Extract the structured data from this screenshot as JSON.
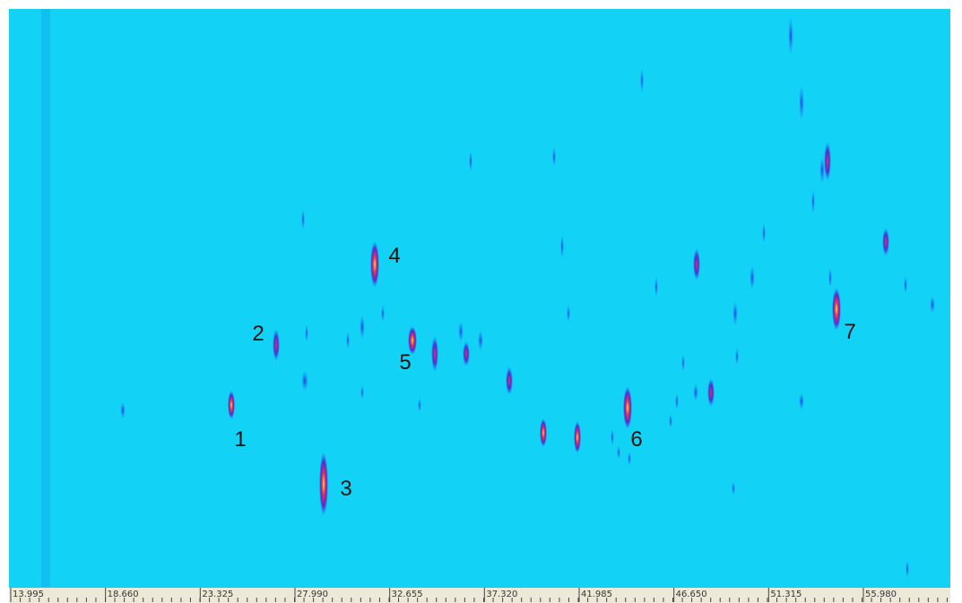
{
  "axis": {
    "ticks": [
      13.995,
      {
        "value": 18.66,
        "label": "18.660"
      },
      23.325,
      {
        "value": 27.99,
        "label": "27.990"
      },
      32.655,
      {
        "value": 37.32,
        "label": "37.320"
      },
      41.985,
      {
        "value": 46.65,
        "label": "46.650"
      },
      51.315,
      {
        "value": 55.98,
        "label": "55.980"
      }
    ]
  },
  "peaks": [
    {
      "label": "1"
    },
    {
      "label": "2"
    },
    {
      "label": "3"
    },
    {
      "label": "4"
    },
    {
      "label": "5"
    },
    {
      "label": "6"
    },
    {
      "label": "7"
    }
  ]
}
